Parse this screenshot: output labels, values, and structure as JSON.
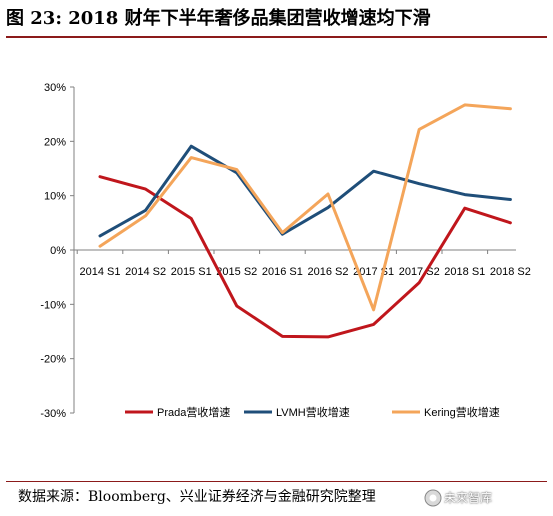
{
  "figure": {
    "title": "图 23: 2018 财年下半年奢侈品集团营收增速均下滑",
    "source": "数据来源：Bloomberg、兴业证券经济与金融研究院整理",
    "watermark": "未来智库",
    "title_rule_color": "#8b1a1a"
  },
  "chart_data": {
    "type": "line",
    "title": "",
    "xlabel": "",
    "ylabel": "",
    "categories": [
      "2014 S1",
      "2014 S2",
      "2015 S1",
      "2015 S2",
      "2016 S1",
      "2016 S2",
      "2017 S1",
      "2017 S2",
      "2018 S1",
      "2018 S2"
    ],
    "ylim": [
      -30,
      30
    ],
    "yticks": [
      -30,
      -20,
      -10,
      0,
      10,
      20,
      30
    ],
    "ytick_labels": [
      "-30%",
      "-20%",
      "-10%",
      "0%",
      "10%",
      "20%",
      "30%"
    ],
    "y_unit": "%",
    "grid": false,
    "legend_position": "bottom",
    "series": [
      {
        "name": "Prada营收增速",
        "color": "#c0161c",
        "values": [
          13.5,
          11.2,
          5.8,
          -10.3,
          -15.9,
          -16.0,
          -13.7,
          -6.0,
          7.7,
          5.0
        ]
      },
      {
        "name": "LVMH营收增速",
        "color": "#1f4e79",
        "values": [
          2.6,
          7.3,
          19.1,
          14.2,
          2.9,
          7.8,
          14.5,
          12.2,
          10.2,
          9.3
        ]
      },
      {
        "name": "Kering营收增速",
        "color": "#f4a55a",
        "values": [
          0.7,
          6.3,
          17.0,
          14.8,
          3.2,
          10.3,
          -11.0,
          22.2,
          26.7,
          26.0
        ]
      }
    ]
  }
}
